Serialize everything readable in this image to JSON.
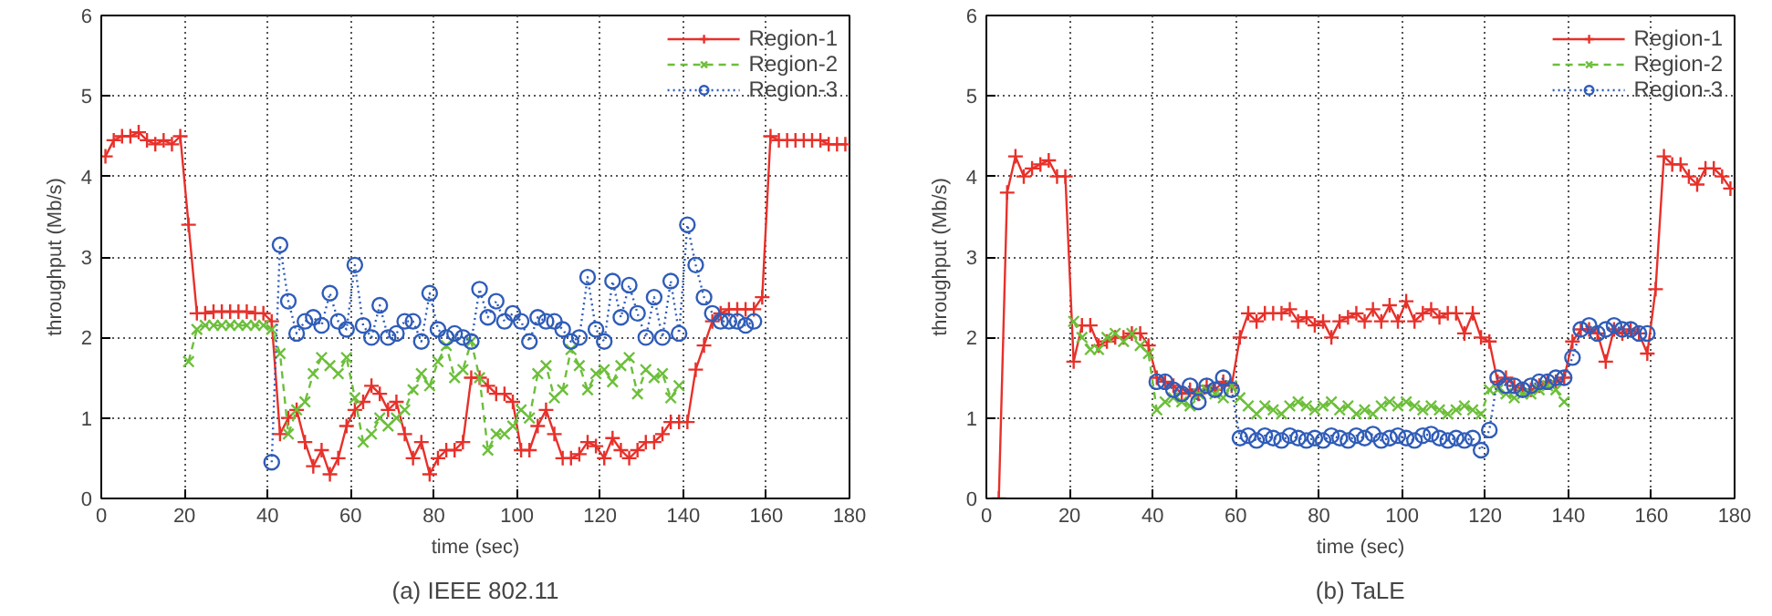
{
  "chart_data": [
    {
      "type": "line",
      "title": "(a) IEEE 802.11",
      "xlabel": "time (sec)",
      "ylabel": "throughput (Mb/s)",
      "xlim": [
        0,
        180
      ],
      "ylim": [
        0,
        6
      ],
      "xticks": [
        0,
        20,
        40,
        60,
        80,
        100,
        120,
        140,
        160,
        180
      ],
      "yticks": [
        0,
        1,
        2,
        3,
        4,
        5,
        6
      ],
      "grid": true,
      "legend": "top right",
      "series": [
        {
          "name": "Region-1",
          "color": "#e8302a",
          "marker": "cross",
          "line_style": "solid",
          "x": [
            1,
            3,
            5,
            7,
            9,
            11,
            13,
            15,
            17,
            19,
            21,
            23,
            25,
            27,
            29,
            31,
            33,
            35,
            37,
            39,
            41,
            43,
            45,
            47,
            49,
            51,
            53,
            55,
            57,
            59,
            61,
            63,
            65,
            67,
            69,
            71,
            73,
            75,
            77,
            79,
            81,
            83,
            85,
            87,
            89,
            91,
            93,
            95,
            97,
            99,
            101,
            103,
            105,
            107,
            109,
            111,
            113,
            115,
            117,
            119,
            121,
            123,
            125,
            127,
            129,
            131,
            133,
            135,
            137,
            139,
            141,
            143,
            145,
            147,
            149,
            151,
            153,
            155,
            157,
            159,
            161,
            163,
            165,
            167,
            169,
            171,
            173,
            175,
            177,
            179
          ],
          "values": [
            4.25,
            4.45,
            4.5,
            4.5,
            4.55,
            4.45,
            4.4,
            4.45,
            4.4,
            4.5,
            3.4,
            2.3,
            2.3,
            2.32,
            2.32,
            2.32,
            2.32,
            2.32,
            2.3,
            2.3,
            2.2,
            0.8,
            1.0,
            1.1,
            0.7,
            0.4,
            0.6,
            0.3,
            0.5,
            0.9,
            1.1,
            1.2,
            1.4,
            1.3,
            1.1,
            1.2,
            0.8,
            0.5,
            0.7,
            0.3,
            0.5,
            0.6,
            0.6,
            0.7,
            1.5,
            1.5,
            1.4,
            1.3,
            1.3,
            1.2,
            0.6,
            0.6,
            0.9,
            1.1,
            0.8,
            0.5,
            0.5,
            0.55,
            0.7,
            0.65,
            0.5,
            0.75,
            0.6,
            0.5,
            0.6,
            0.7,
            0.7,
            0.8,
            0.95,
            0.95,
            0.95,
            1.6,
            1.9,
            2.2,
            2.3,
            2.35,
            2.35,
            2.35,
            2.35,
            2.5,
            4.5,
            4.45,
            4.45,
            4.45,
            4.45,
            4.45,
            4.45,
            4.4,
            4.4,
            4.4
          ]
        },
        {
          "name": "Region-2",
          "color": "#6cbf3a",
          "marker": "x",
          "line_style": "dashed",
          "x": [
            21,
            23,
            25,
            27,
            29,
            31,
            33,
            35,
            37,
            39,
            41,
            43,
            45,
            47,
            49,
            51,
            53,
            55,
            57,
            59,
            61,
            63,
            65,
            67,
            69,
            71,
            73,
            75,
            77,
            79,
            81,
            83,
            85,
            87,
            89,
            91,
            93,
            95,
            97,
            99,
            101,
            103,
            105,
            107,
            109,
            111,
            113,
            115,
            117,
            119,
            121,
            123,
            125,
            127,
            129,
            131,
            133,
            135,
            137,
            139
          ],
          "values": [
            1.7,
            2.1,
            2.15,
            2.15,
            2.15,
            2.15,
            2.15,
            2.15,
            2.15,
            2.15,
            2.1,
            1.8,
            0.8,
            1.1,
            1.2,
            1.55,
            1.75,
            1.65,
            1.55,
            1.75,
            1.25,
            0.7,
            0.8,
            1.0,
            0.9,
            1.0,
            1.1,
            1.35,
            1.55,
            1.4,
            1.7,
            1.9,
            1.5,
            1.6,
            1.95,
            1.5,
            0.6,
            0.8,
            0.8,
            0.9,
            1.1,
            1.0,
            1.55,
            1.65,
            1.25,
            1.35,
            1.85,
            1.65,
            1.35,
            1.55,
            1.6,
            1.45,
            1.65,
            1.75,
            1.3,
            1.6,
            1.5,
            1.55,
            1.25,
            1.4
          ]
        },
        {
          "name": "Region-3",
          "color": "#2f5cb8",
          "marker": "circle",
          "line_style": "dotted",
          "x": [
            41,
            43,
            45,
            47,
            49,
            51,
            53,
            55,
            57,
            59,
            61,
            63,
            65,
            67,
            69,
            71,
            73,
            75,
            77,
            79,
            81,
            83,
            85,
            87,
            89,
            91,
            93,
            95,
            97,
            99,
            101,
            103,
            105,
            107,
            109,
            111,
            113,
            115,
            117,
            119,
            121,
            123,
            125,
            127,
            129,
            131,
            133,
            135,
            137,
            139,
            141,
            143,
            145,
            147,
            149,
            151,
            153,
            155,
            157
          ],
          "values": [
            0.45,
            3.15,
            2.45,
            2.05,
            2.2,
            2.25,
            2.15,
            2.55,
            2.2,
            2.1,
            2.9,
            2.15,
            2.0,
            2.4,
            2.0,
            2.05,
            2.2,
            2.2,
            1.95,
            2.55,
            2.1,
            2.0,
            2.05,
            2.0,
            1.95,
            2.6,
            2.25,
            2.45,
            2.2,
            2.3,
            2.2,
            1.95,
            2.25,
            2.2,
            2.2,
            2.1,
            1.95,
            2.0,
            2.75,
            2.1,
            1.95,
            2.7,
            2.25,
            2.65,
            2.3,
            2.0,
            2.5,
            2.0,
            2.7,
            2.05,
            3.4,
            2.9,
            2.5,
            2.3,
            2.2,
            2.2,
            2.2,
            2.15,
            2.2
          ]
        }
      ]
    },
    {
      "type": "line",
      "title": "(b) TaLE",
      "xlabel": "time (sec)",
      "ylabel": "throughput (Mb/s)",
      "xlim": [
        0,
        180
      ],
      "ylim": [
        0,
        6
      ],
      "xticks": [
        0,
        20,
        40,
        60,
        80,
        100,
        120,
        140,
        160,
        180
      ],
      "yticks": [
        0,
        1,
        2,
        3,
        4,
        5,
        6
      ],
      "grid": true,
      "legend": "top right",
      "series": [
        {
          "name": "Region-1",
          "color": "#e8302a",
          "marker": "cross",
          "line_style": "solid",
          "x": [
            3,
            5,
            7,
            9,
            11,
            13,
            15,
            17,
            19,
            21,
            23,
            25,
            27,
            29,
            31,
            33,
            35,
            37,
            39,
            41,
            43,
            45,
            47,
            49,
            51,
            53,
            55,
            57,
            59,
            61,
            63,
            65,
            67,
            69,
            71,
            73,
            75,
            77,
            79,
            81,
            83,
            85,
            87,
            89,
            91,
            93,
            95,
            97,
            99,
            101,
            103,
            105,
            107,
            109,
            111,
            113,
            115,
            117,
            119,
            121,
            123,
            125,
            127,
            129,
            131,
            133,
            135,
            137,
            139,
            141,
            143,
            145,
            147,
            149,
            151,
            153,
            155,
            157,
            159,
            161,
            163,
            165,
            167,
            169,
            171,
            173,
            175,
            177,
            179
          ],
          "values": [
            0,
            3.8,
            4.25,
            4.0,
            4.1,
            4.15,
            4.2,
            4.0,
            4.0,
            1.7,
            2.15,
            2.15,
            1.9,
            1.95,
            2.0,
            2.0,
            2.05,
            2.05,
            1.9,
            1.5,
            1.45,
            1.4,
            1.3,
            1.35,
            1.3,
            1.4,
            1.35,
            1.45,
            1.4,
            2.0,
            2.3,
            2.2,
            2.3,
            2.3,
            2.3,
            2.35,
            2.2,
            2.25,
            2.15,
            2.2,
            2.0,
            2.2,
            2.25,
            2.3,
            2.2,
            2.35,
            2.2,
            2.4,
            2.2,
            2.45,
            2.2,
            2.3,
            2.35,
            2.25,
            2.3,
            2.3,
            2.05,
            2.3,
            2.0,
            1.95,
            1.45,
            1.5,
            1.4,
            1.35,
            1.35,
            1.4,
            1.45,
            1.45,
            1.5,
            1.95,
            2.1,
            2.1,
            2.05,
            1.7,
            2.1,
            2.05,
            2.1,
            2.05,
            1.8,
            2.6,
            4.25,
            4.15,
            4.15,
            4.0,
            3.9,
            4.1,
            4.1,
            4.0,
            3.85
          ]
        },
        {
          "name": "Region-2",
          "color": "#6cbf3a",
          "marker": "x",
          "line_style": "dashed",
          "x": [
            21,
            23,
            25,
            27,
            29,
            31,
            33,
            35,
            37,
            39,
            41,
            43,
            45,
            47,
            49,
            51,
            53,
            55,
            57,
            59,
            61,
            63,
            65,
            67,
            69,
            71,
            73,
            75,
            77,
            79,
            81,
            83,
            85,
            87,
            89,
            91,
            93,
            95,
            97,
            99,
            101,
            103,
            105,
            107,
            109,
            111,
            113,
            115,
            117,
            119,
            121,
            123,
            125,
            127,
            129,
            131,
            133,
            135,
            137,
            139
          ],
          "values": [
            2.2,
            2.0,
            1.85,
            1.85,
            2.0,
            2.05,
            1.95,
            2.05,
            1.9,
            1.8,
            1.1,
            1.2,
            1.25,
            1.2,
            1.15,
            1.3,
            1.35,
            1.3,
            1.25,
            1.4,
            1.25,
            1.15,
            1.05,
            1.15,
            1.1,
            1.05,
            1.15,
            1.2,
            1.15,
            1.1,
            1.15,
            1.2,
            1.1,
            1.15,
            1.05,
            1.1,
            1.05,
            1.15,
            1.2,
            1.15,
            1.2,
            1.15,
            1.1,
            1.15,
            1.1,
            1.05,
            1.1,
            1.15,
            1.1,
            1.05,
            1.35,
            1.35,
            1.3,
            1.25,
            1.3,
            1.3,
            1.35,
            1.4,
            1.35,
            1.2
          ]
        },
        {
          "name": "Region-3",
          "color": "#2f5cb8",
          "marker": "circle",
          "line_style": "dotted",
          "x": [
            41,
            43,
            45,
            47,
            49,
            51,
            53,
            55,
            57,
            59,
            61,
            63,
            65,
            67,
            69,
            71,
            73,
            75,
            77,
            79,
            81,
            83,
            85,
            87,
            89,
            91,
            93,
            95,
            97,
            99,
            101,
            103,
            105,
            107,
            109,
            111,
            113,
            115,
            117,
            119,
            121,
            123,
            125,
            127,
            129,
            131,
            133,
            135,
            137,
            139,
            141,
            143,
            145,
            147,
            149,
            151,
            153,
            155,
            157,
            159
          ],
          "values": [
            1.45,
            1.45,
            1.35,
            1.3,
            1.4,
            1.2,
            1.4,
            1.35,
            1.5,
            1.35,
            0.75,
            0.78,
            0.72,
            0.78,
            0.75,
            0.72,
            0.78,
            0.75,
            0.72,
            0.75,
            0.72,
            0.78,
            0.75,
            0.72,
            0.78,
            0.75,
            0.8,
            0.72,
            0.75,
            0.78,
            0.75,
            0.72,
            0.78,
            0.8,
            0.75,
            0.72,
            0.75,
            0.72,
            0.75,
            0.6,
            0.85,
            1.5,
            1.4,
            1.4,
            1.35,
            1.4,
            1.45,
            1.45,
            1.5,
            1.5,
            1.75,
            2.1,
            2.15,
            2.05,
            2.1,
            2.15,
            2.1,
            2.1,
            2.05,
            2.05
          ]
        }
      ]
    }
  ]
}
